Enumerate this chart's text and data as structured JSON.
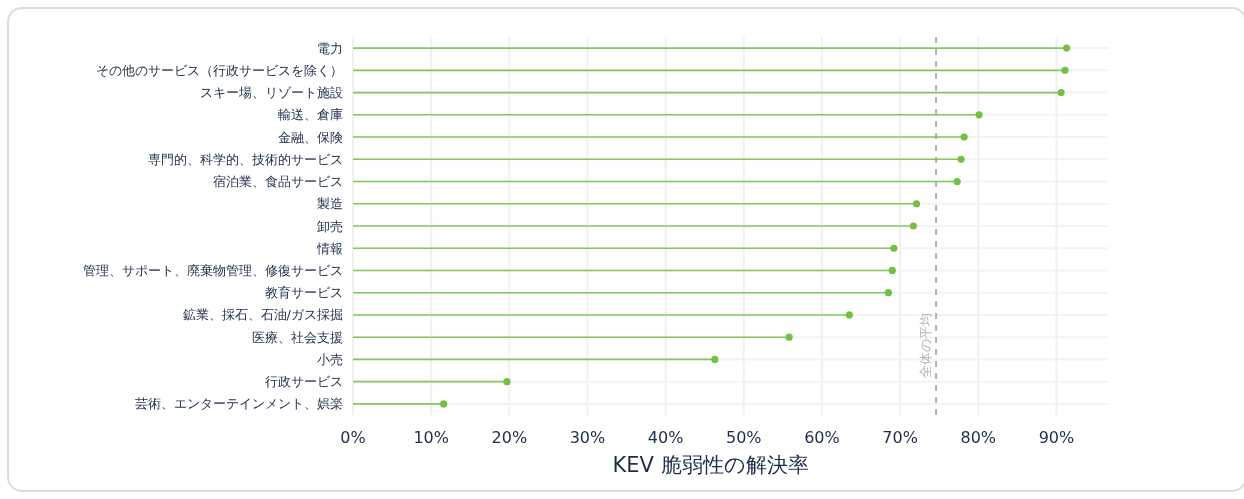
{
  "chart_data": {
    "type": "lollipop",
    "orientation": "horizontal",
    "categories": [
      "電力",
      "その他のサービス（行政サービスを除く）",
      "スキー場、リゾート施設",
      "輸送、倉庫",
      "金融、保険",
      "専門的、科学的、技術的サービス",
      "宿泊業、食品サービス",
      "製造",
      "卸売",
      "情報",
      "管理、サポート、廃棄物管理、修復サービス",
      "教育サービス",
      "鉱業、採石、石油/ガス採掘",
      "医療、社会支援",
      "小売",
      "行政サービス",
      "芸術、エンターテインメント、娯楽"
    ],
    "values": [
      91.3,
      91.1,
      90.6,
      80.1,
      78.2,
      77.8,
      77.3,
      72.1,
      71.7,
      69.2,
      69.0,
      68.5,
      63.5,
      55.8,
      46.3,
      19.7,
      11.6
    ],
    "color": "#74c044",
    "marker": "circle",
    "grid": true,
    "xlabel": "KEV 脆弱性の解決率",
    "xlim": [
      0,
      96.6
    ],
    "xticks": [
      {
        "value": 0,
        "label": "0%"
      },
      {
        "value": 10,
        "label": "10%"
      },
      {
        "value": 20,
        "label": "20%"
      },
      {
        "value": 30,
        "label": "30%"
      },
      {
        "value": 40,
        "label": "40%"
      },
      {
        "value": 50,
        "label": "50%"
      },
      {
        "value": 60,
        "label": "60%"
      },
      {
        "value": 70,
        "label": "70%"
      },
      {
        "value": 80,
        "label": "80%"
      },
      {
        "value": 90,
        "label": "90%"
      }
    ],
    "ref_lines": [
      {
        "axis": "x",
        "value": 74.6,
        "label": "全体の平均",
        "color": "#b4b4b4",
        "line_style": "dashed"
      }
    ]
  }
}
